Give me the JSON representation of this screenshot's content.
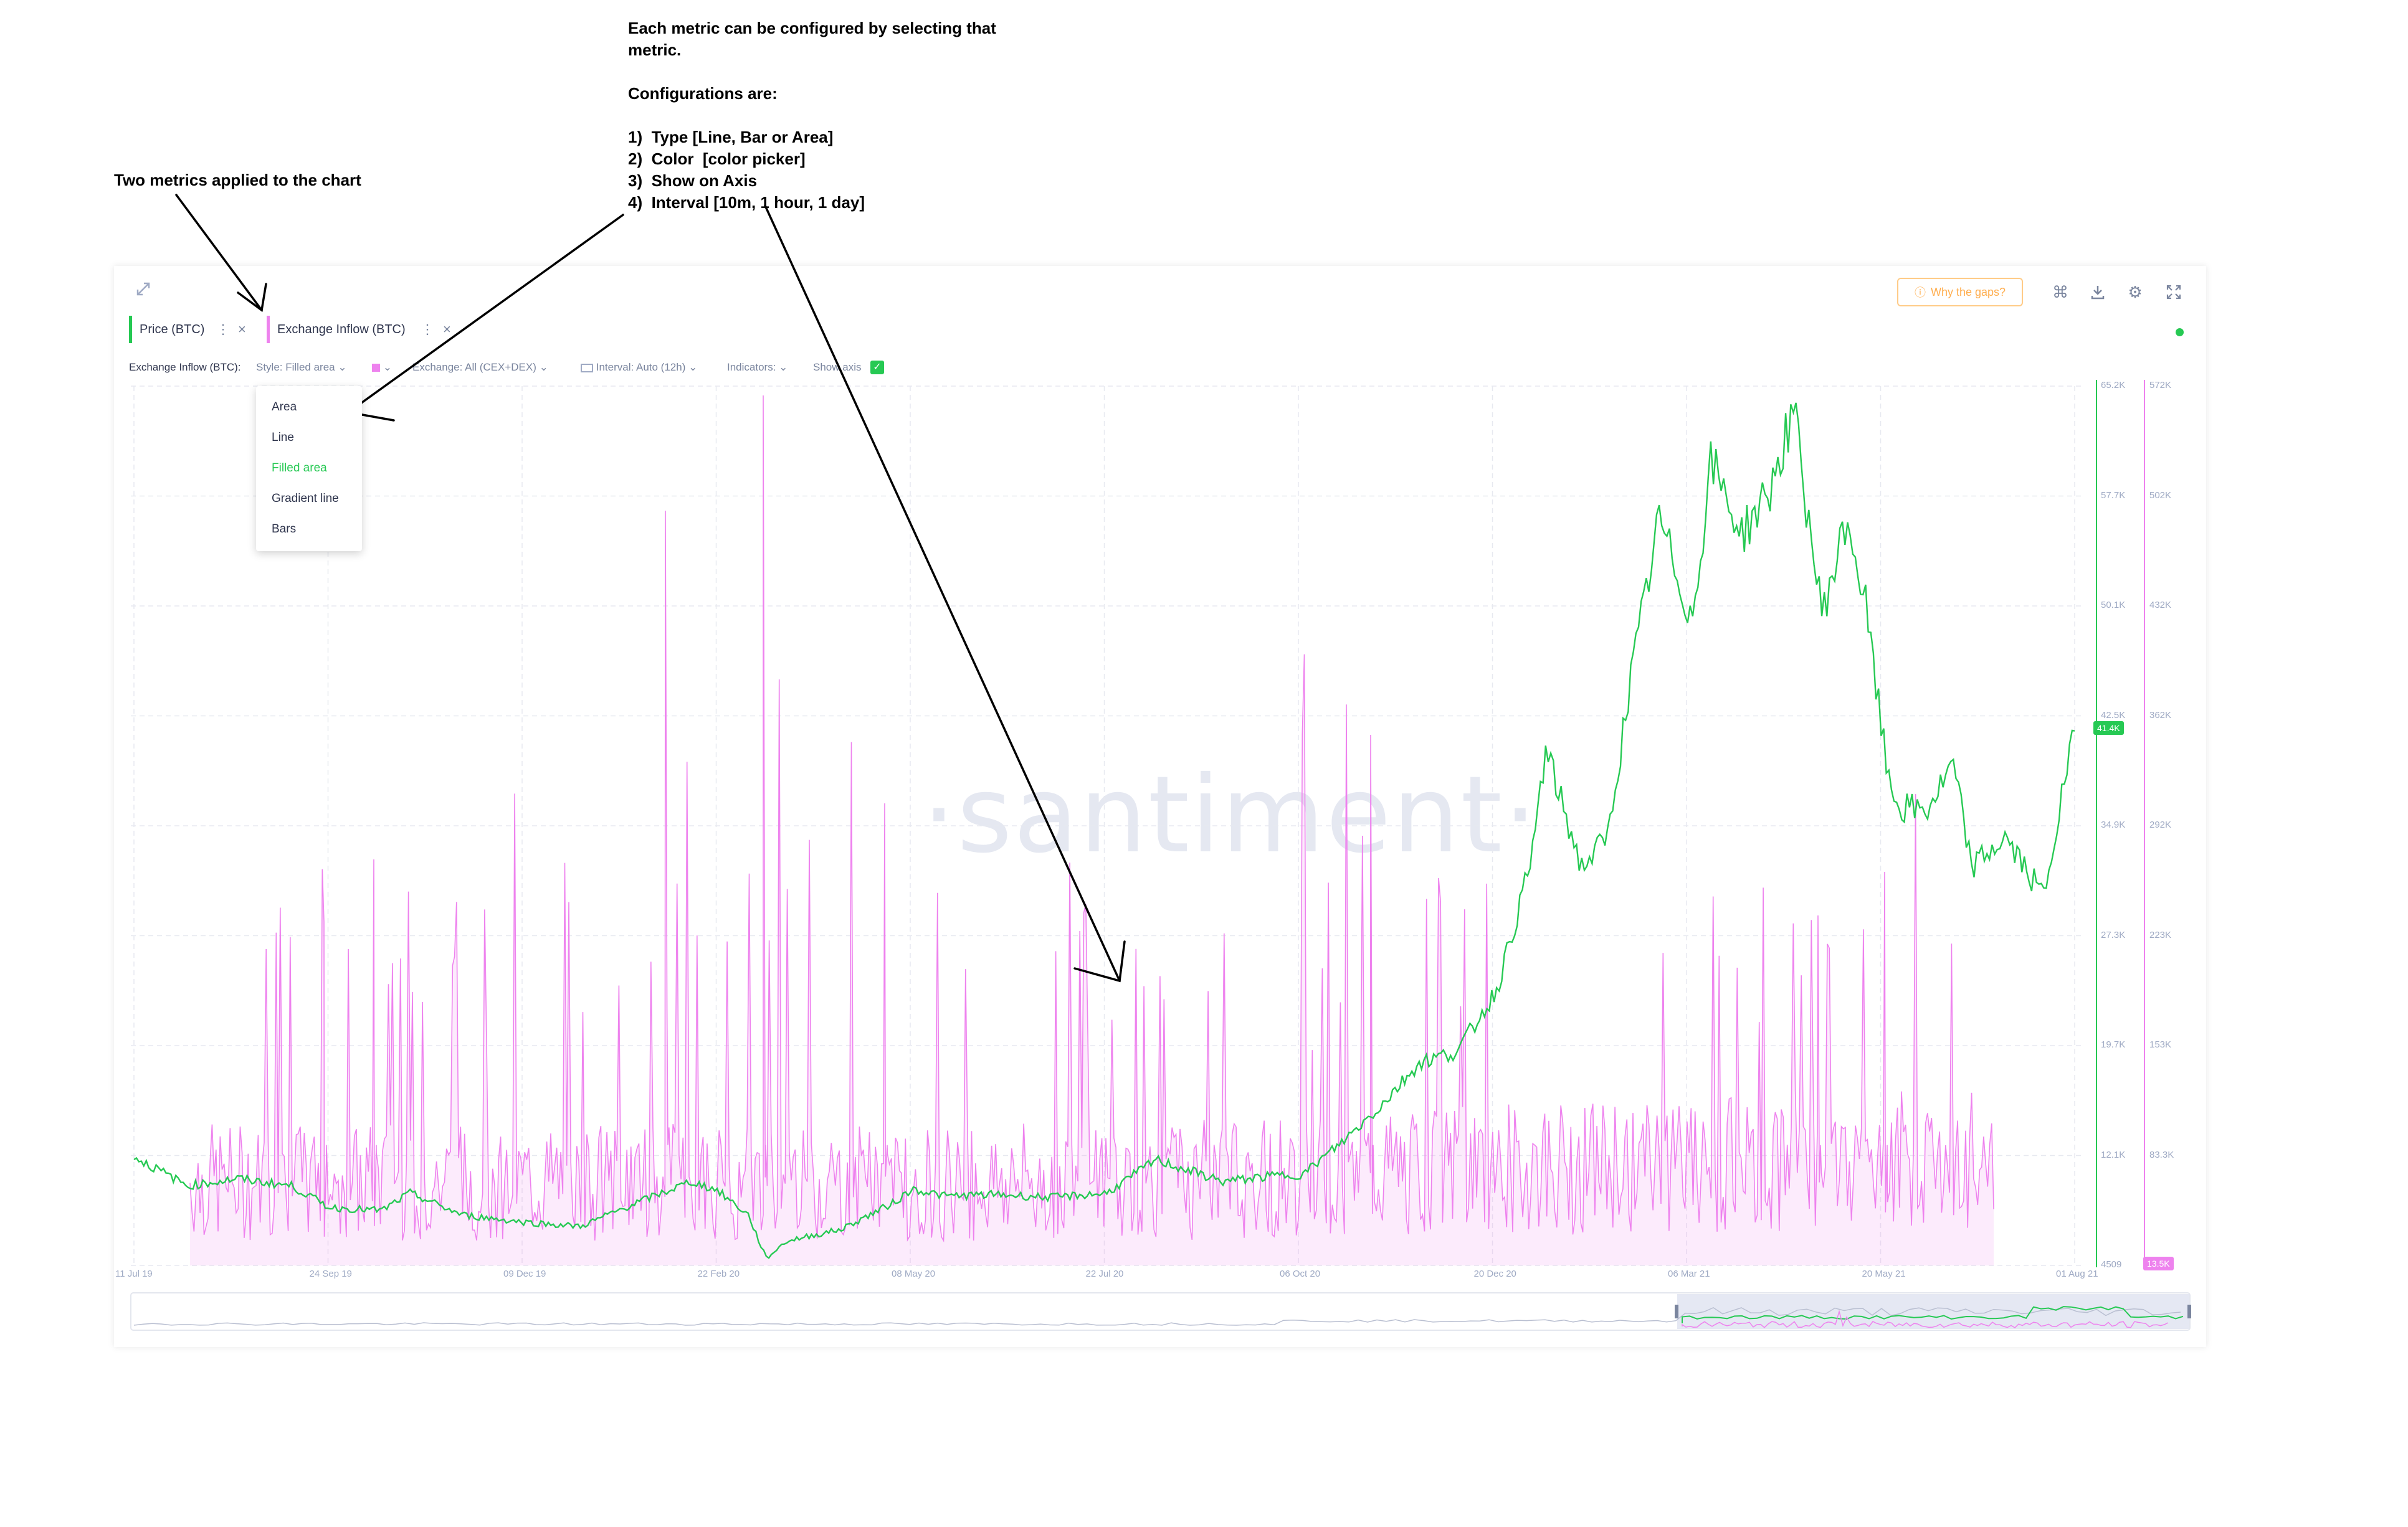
{
  "annotations": {
    "two_metrics": "Two metrics applied to the chart",
    "config_text": "Each metric can be configured by selecting that\nmetric.\n\nConfigurations are:\n\n1)  Type [Line, Bar or Area]\n2)  Color  [color picker]\n3)  Show on Axis\n4)  Interval [10m, 1 hour, 1 day]"
  },
  "toolbar": {
    "why_gaps": "Why the gaps?",
    "icons": [
      "expand-icon",
      "command-icon",
      "download-icon",
      "settings-icon",
      "fullscreen-icon"
    ]
  },
  "metrics_tabs": [
    {
      "label": "Price (BTC)",
      "color": "#26c953"
    },
    {
      "label": "Exchange Inflow (BTC)",
      "color": "#ee82ee"
    }
  ],
  "settings": {
    "metric": "Exchange Inflow (BTC):",
    "style": "Style: Filled area",
    "exchange": "Exchange: All (CEX+DEX)",
    "interval": "Interval: Auto (12h)",
    "indicators": "Indicators:",
    "show_axis": "Show axis"
  },
  "style_dropdown": {
    "options": [
      "Area",
      "Line",
      "Filled area",
      "Gradient line",
      "Bars"
    ],
    "selected": "Filled area"
  },
  "watermark": "·santiment·",
  "chart_data": {
    "type": "line",
    "x_ticks": [
      "11 Jul 19",
      "24 Sep 19",
      "09 Dec 19",
      "22 Feb 20",
      "08 May 20",
      "22 Jul 20",
      "06 Oct 20",
      "20 Dec 20",
      "06 Mar 21",
      "20 May 21",
      "01 Aug 21"
    ],
    "y_left_ticks": [
      "65.2K",
      "57.7K",
      "50.1K",
      "42.5K",
      "34.9K",
      "27.3K",
      "19.7K",
      "12.1K",
      "4509"
    ],
    "y_right_ticks": [
      "572K",
      "502K",
      "432K",
      "362K",
      "292K",
      "223K",
      "153K",
      "83.3K",
      "13.5K"
    ],
    "ylim_price": [
      4509,
      65200
    ],
    "ylim_inflow": [
      13500,
      572000
    ],
    "current_price_label": "41.4K",
    "current_inflow_label": "13.5K",
    "series": [
      {
        "name": "Price (BTC)",
        "color": "#26c953",
        "x": [
          "2019-07-11",
          "2019-08-01",
          "2019-08-20",
          "2019-09-10",
          "2019-09-25",
          "2019-10-15",
          "2019-10-26",
          "2019-11-15",
          "2019-12-09",
          "2019-12-31",
          "2020-01-20",
          "2020-02-12",
          "2020-02-22",
          "2020-03-05",
          "2020-03-12",
          "2020-03-20",
          "2020-04-10",
          "2020-04-30",
          "2020-05-08",
          "2020-05-20",
          "2020-06-10",
          "2020-07-01",
          "2020-07-22",
          "2020-08-10",
          "2020-09-05",
          "2020-09-25",
          "2020-10-06",
          "2020-10-21",
          "2020-11-05",
          "2020-11-20",
          "2020-12-05",
          "2020-12-20",
          "2021-01-02",
          "2021-01-08",
          "2021-01-22",
          "2021-02-01",
          "2021-02-10",
          "2021-02-21",
          "2021-03-06",
          "2021-03-13",
          "2021-03-25",
          "2021-04-05",
          "2021-04-14",
          "2021-04-25",
          "2021-05-05",
          "2021-05-12",
          "2021-05-20",
          "2021-05-25",
          "2021-06-05",
          "2021-06-15",
          "2021-06-22",
          "2021-07-05",
          "2021-07-20",
          "2021-08-01"
        ],
        "values": [
          12000,
          10000,
          10500,
          10000,
          8500,
          8300,
          9500,
          8000,
          7500,
          7200,
          8700,
          10300,
          9700,
          8000,
          5000,
          6200,
          7000,
          8800,
          9800,
          9300,
          9400,
          9200,
          9500,
          11800,
          10300,
          10700,
          10800,
          13000,
          15500,
          18500,
          19300,
          23500,
          32000,
          40000,
          32000,
          34000,
          45000,
          56000,
          49000,
          60000,
          55000,
          58000,
          63500,
          49500,
          56000,
          50000,
          39000,
          36000,
          36000,
          39000,
          32000,
          34000,
          30000,
          41400
        ]
      },
      {
        "name": "Exchange Inflow (BTC)",
        "color": "#ee82ee",
        "x": [
          "2019-07-11",
          "2020-08-10",
          "2021-08-01"
        ],
        "values": [
          83300,
          153000,
          13500
        ]
      }
    ]
  }
}
